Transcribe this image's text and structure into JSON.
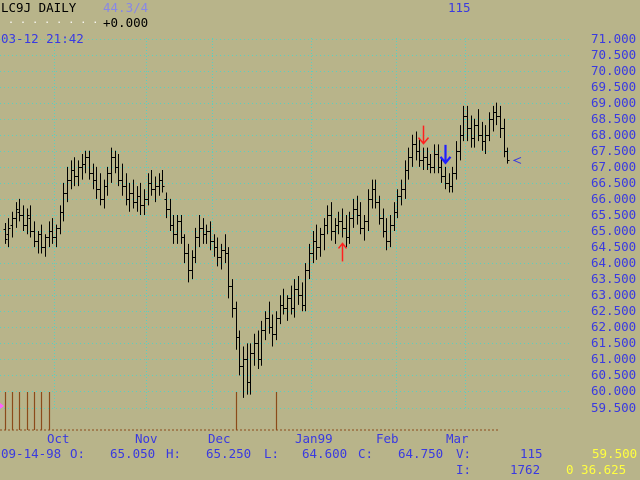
{
  "header": {
    "symbol": "LC9J DAILY",
    "dots": ". . . . . . . .",
    "change": "+0.000",
    "top_count": "115",
    "datetime": "03-12 21:42",
    "faded_label": "44.3/4"
  },
  "footer": {
    "date": "09-14-98",
    "open_label": "O:",
    "open": "65.050",
    "high_label": "H:",
    "high": "65.250",
    "low_label": "L:",
    "low": "64.600",
    "close_label": "C:",
    "close": "64.750",
    "volume_label": "V:",
    "volume": "115",
    "last_price": "59.500",
    "interest_label": "I:",
    "interest": "1762",
    "time_value": "0 36.625"
  },
  "colors": {
    "background": "#b8b48a",
    "bars": "#000000",
    "axis_text": "#3a3ae0",
    "gridlines": "#5ad0c0",
    "volume": "#8b4a1a",
    "up_arrow": "#ff2020",
    "down_arrow_red": "#ff2020",
    "down_arrow_blue": "#2020ff",
    "current_marker": "#3a3ae0"
  },
  "chart_data": {
    "type": "ohlc",
    "title": "LC9J DAILY",
    "xlabel": "",
    "ylabel": "",
    "ylim": [
      59.2,
      71.3
    ],
    "yticks": [
      "71.000",
      "70.500",
      "70.000",
      "69.500",
      "69.000",
      "68.500",
      "68.000",
      "67.500",
      "67.000",
      "66.500",
      "66.000",
      "65.500",
      "65.000",
      "64.500",
      "64.000",
      "63.500",
      "63.000",
      "62.500",
      "62.000",
      "61.500",
      "61.000",
      "60.500",
      "60.000",
      "59.500"
    ],
    "month_labels": [
      "Oct",
      "Nov",
      "Dec",
      "Jan99",
      "Feb",
      "Mar"
    ],
    "month_start_index": [
      14,
      39,
      57,
      84,
      107,
      126
    ],
    "grid": "vertical dotted at months, horizontal dotted at ticks",
    "bars": [
      [
        65.05,
        65.25,
        64.6,
        64.75
      ],
      [
        64.9,
        65.4,
        64.5,
        65.1
      ],
      [
        65.2,
        65.6,
        64.8,
        65.4
      ],
      [
        65.4,
        65.9,
        65.1,
        65.7
      ],
      [
        65.6,
        66.0,
        65.3,
        65.5
      ],
      [
        65.5,
        65.8,
        65.0,
        65.2
      ],
      [
        65.2,
        65.7,
        64.9,
        65.5
      ],
      [
        65.4,
        65.8,
        64.8,
        65.0
      ],
      [
        65.0,
        65.3,
        64.5,
        64.7
      ],
      [
        64.7,
        65.0,
        64.3,
        64.9
      ],
      [
        64.9,
        65.2,
        64.3,
        64.5
      ],
      [
        64.5,
        64.9,
        64.2,
        64.8
      ],
      [
        64.8,
        65.3,
        64.5,
        65.0
      ],
      [
        65.0,
        65.4,
        64.6,
        64.8
      ],
      [
        64.8,
        65.2,
        64.5,
        65.1
      ],
      [
        65.1,
        65.8,
        64.9,
        65.6
      ],
      [
        65.6,
        66.5,
        65.3,
        66.2
      ],
      [
        66.2,
        67.0,
        65.9,
        66.6
      ],
      [
        66.6,
        67.2,
        66.3,
        66.9
      ],
      [
        66.9,
        67.3,
        66.4,
        66.7
      ],
      [
        66.7,
        67.2,
        66.4,
        67.0
      ],
      [
        67.0,
        67.4,
        66.6,
        67.1
      ],
      [
        67.1,
        67.5,
        66.8,
        67.3
      ],
      [
        67.3,
        67.5,
        66.6,
        66.8
      ],
      [
        66.8,
        67.1,
        66.3,
        66.6
      ],
      [
        66.6,
        67.0,
        66.0,
        66.3
      ],
      [
        66.3,
        66.8,
        65.8,
        66.0
      ],
      [
        66.0,
        66.6,
        65.7,
        66.4
      ],
      [
        66.4,
        67.0,
        66.1,
        66.8
      ],
      [
        66.8,
        67.6,
        66.5,
        67.3
      ],
      [
        67.3,
        67.5,
        66.8,
        67.0
      ],
      [
        67.0,
        67.4,
        66.4,
        66.6
      ],
      [
        66.6,
        67.1,
        66.1,
        66.4
      ],
      [
        66.4,
        66.8,
        65.8,
        66.0
      ],
      [
        66.0,
        66.5,
        65.6,
        66.2
      ],
      [
        66.2,
        66.6,
        65.7,
        65.9
      ],
      [
        65.9,
        66.4,
        65.6,
        66.1
      ],
      [
        66.1,
        66.5,
        65.5,
        65.8
      ],
      [
        65.8,
        66.3,
        65.5,
        66.0
      ],
      [
        66.0,
        66.8,
        65.8,
        66.5
      ],
      [
        66.5,
        66.9,
        66.1,
        66.3
      ],
      [
        66.3,
        66.7,
        65.9,
        66.4
      ],
      [
        66.4,
        66.8,
        66.1,
        66.6
      ],
      [
        66.6,
        66.9,
        66.2,
        66.4
      ],
      [
        66.0,
        66.2,
        65.4,
        65.7
      ],
      [
        65.7,
        66.0,
        65.0,
        65.2
      ],
      [
        65.2,
        65.5,
        64.6,
        64.9
      ],
      [
        64.9,
        65.5,
        64.6,
        65.3
      ],
      [
        65.3,
        65.5,
        64.6,
        64.8
      ],
      [
        64.8,
        64.9,
        64.0,
        64.3
      ],
      [
        64.3,
        64.6,
        63.4,
        63.8
      ],
      [
        63.8,
        64.4,
        63.5,
        64.2
      ],
      [
        64.2,
        65.1,
        64.0,
        64.8
      ],
      [
        64.8,
        65.5,
        64.5,
        65.1
      ],
      [
        65.1,
        65.4,
        64.6,
        64.9
      ],
      [
        64.9,
        65.2,
        64.6,
        65.0
      ],
      [
        65.0,
        65.3,
        64.4,
        64.7
      ],
      [
        64.7,
        64.9,
        64.2,
        64.5
      ],
      [
        64.5,
        64.8,
        63.9,
        64.2
      ],
      [
        64.2,
        64.6,
        63.8,
        64.4
      ],
      [
        64.4,
        64.9,
        64.0,
        64.3
      ],
      [
        64.3,
        64.5,
        62.9,
        63.3
      ],
      [
        63.3,
        63.5,
        62.3,
        62.6
      ],
      [
        62.6,
        62.8,
        61.3,
        61.7
      ],
      [
        61.7,
        61.9,
        60.5,
        60.8
      ],
      [
        60.8,
        61.4,
        59.8,
        61.0
      ],
      [
        61.0,
        61.5,
        59.9,
        60.3
      ],
      [
        60.3,
        61.5,
        59.9,
        61.2
      ],
      [
        61.2,
        61.8,
        60.8,
        61.5
      ],
      [
        61.5,
        61.9,
        60.7,
        61.0
      ],
      [
        61.0,
        62.2,
        60.8,
        61.9
      ],
      [
        61.9,
        62.5,
        61.6,
        62.3
      ],
      [
        62.3,
        62.8,
        61.8,
        62.0
      ],
      [
        62.0,
        62.4,
        61.4,
        61.8
      ],
      [
        61.8,
        62.5,
        61.6,
        62.3
      ],
      [
        62.3,
        63.0,
        62.1,
        62.7
      ],
      [
        62.7,
        63.2,
        62.4,
        62.6
      ],
      [
        62.6,
        63.0,
        62.2,
        62.9
      ],
      [
        62.9,
        63.3,
        62.4,
        62.6
      ],
      [
        62.6,
        63.5,
        62.3,
        63.2
      ],
      [
        63.2,
        63.6,
        62.7,
        63.0
      ],
      [
        63.0,
        63.4,
        62.5,
        62.7
      ],
      [
        62.7,
        64.0,
        62.5,
        63.8
      ],
      [
        63.8,
        64.6,
        63.5,
        64.3
      ],
      [
        64.3,
        65.0,
        64.0,
        64.7
      ],
      [
        64.7,
        65.2,
        64.1,
        64.5
      ],
      [
        64.5,
        65.1,
        64.2,
        64.9
      ],
      [
        64.9,
        65.4,
        64.4,
        65.2
      ],
      [
        65.2,
        65.8,
        64.9,
        65.5
      ],
      [
        65.5,
        65.9,
        64.7,
        65.0
      ],
      [
        65.0,
        65.4,
        64.6,
        65.2
      ],
      [
        65.2,
        65.6,
        64.9,
        65.3
      ],
      [
        65.3,
        65.7,
        64.8,
        65.1
      ],
      [
        65.1,
        65.5,
        64.5,
        64.8
      ],
      [
        64.8,
        65.6,
        64.6,
        65.4
      ],
      [
        65.4,
        66.0,
        65.1,
        65.7
      ],
      [
        65.7,
        66.1,
        65.2,
        65.5
      ],
      [
        65.5,
        65.9,
        64.9,
        65.1
      ],
      [
        65.1,
        65.5,
        64.7,
        65.3
      ],
      [
        65.3,
        66.3,
        65.0,
        66.0
      ],
      [
        66.0,
        66.6,
        65.7,
        66.3
      ],
      [
        66.3,
        66.6,
        65.7,
        65.9
      ],
      [
        65.9,
        66.1,
        65.2,
        65.4
      ],
      [
        65.4,
        65.7,
        64.8,
        65.0
      ],
      [
        65.0,
        65.4,
        64.4,
        64.7
      ],
      [
        64.7,
        65.5,
        64.5,
        65.2
      ],
      [
        65.2,
        65.9,
        65.0,
        65.6
      ],
      [
        65.6,
        66.3,
        65.4,
        66.1
      ],
      [
        66.1,
        66.6,
        65.8,
        66.3
      ],
      [
        66.3,
        67.2,
        66.0,
        66.9
      ],
      [
        66.9,
        67.6,
        66.6,
        67.3
      ],
      [
        67.3,
        68.0,
        67.0,
        67.7
      ],
      [
        67.7,
        68.1,
        67.2,
        67.5
      ],
      [
        67.5,
        67.9,
        67.0,
        67.2
      ],
      [
        67.2,
        67.6,
        66.9,
        67.3
      ],
      [
        67.3,
        67.6,
        66.9,
        67.1
      ],
      [
        67.1,
        67.4,
        66.8,
        67.0
      ],
      [
        67.0,
        67.7,
        66.8,
        67.4
      ],
      [
        67.4,
        67.7,
        66.8,
        67.0
      ],
      [
        67.0,
        67.3,
        66.5,
        66.7
      ],
      [
        66.7,
        67.0,
        66.3,
        66.5
      ],
      [
        66.5,
        66.8,
        66.2,
        66.4
      ],
      [
        66.4,
        67.0,
        66.2,
        66.8
      ],
      [
        66.8,
        67.8,
        66.6,
        67.5
      ],
      [
        67.5,
        68.3,
        67.2,
        68.0
      ],
      [
        68.0,
        68.9,
        67.8,
        68.6
      ],
      [
        68.6,
        68.9,
        67.8,
        68.2
      ],
      [
        68.2,
        68.6,
        67.6,
        67.9
      ],
      [
        67.9,
        68.5,
        67.6,
        68.3
      ],
      [
        68.3,
        68.8,
        67.8,
        68.0
      ],
      [
        68.0,
        68.4,
        67.5,
        67.8
      ],
      [
        67.8,
        68.3,
        67.4,
        68.0
      ],
      [
        68.0,
        68.7,
        67.8,
        68.5
      ],
      [
        68.5,
        68.9,
        68.1,
        68.7
      ],
      [
        68.7,
        69.0,
        68.3,
        68.6
      ],
      [
        68.6,
        68.9,
        67.9,
        68.2
      ],
      [
        68.2,
        68.5,
        67.3,
        67.5
      ],
      [
        67.5,
        67.6,
        67.1,
        67.2
      ]
    ],
    "volume_bars_index": [
      0,
      2,
      4,
      6,
      8,
      10,
      12,
      63,
      74
    ],
    "current_price": 67.2,
    "annotations": [
      {
        "type": "up-arrow",
        "color": "red",
        "bar_index": 92
      },
      {
        "type": "down-arrow",
        "color": "red",
        "bar_index": 114
      },
      {
        "type": "down-arrow",
        "color": "blue",
        "bar_index": 120
      }
    ]
  }
}
